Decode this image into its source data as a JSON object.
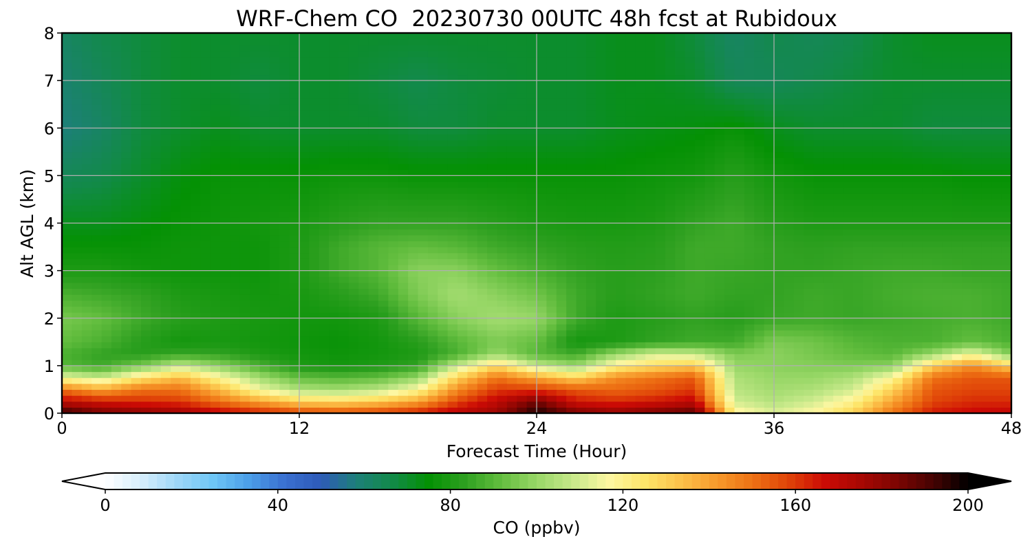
{
  "chart_data": {
    "type": "heatmap",
    "title": "WRF-Chem CO  20230730 00UTC 48h fcst at Rubidoux",
    "xlabel": "Forecast Time (Hour)",
    "ylabel": "Alt AGL (km)",
    "xlim": [
      0,
      48
    ],
    "ylim": [
      0,
      8
    ],
    "x_ticks": [
      "0",
      "12",
      "24",
      "36",
      "48"
    ],
    "y_ticks": [
      "0",
      "1",
      "2",
      "3",
      "4",
      "5",
      "6",
      "7",
      "8"
    ],
    "grid": true,
    "colorbar": {
      "label": "CO  (ppbv)",
      "range": [
        0,
        200
      ],
      "ticks": [
        "0",
        "40",
        "80",
        "120",
        "160",
        "200"
      ],
      "extend": "both",
      "colors": [
        "#ffffff",
        "#d6eefc",
        "#9ed7f8",
        "#6ec6f6",
        "#4b9ee8",
        "#3a6fd0",
        "#2e5bb8",
        "#1d8078",
        "#128a48",
        "#049104",
        "#2ea020",
        "#62bd3e",
        "#98d767",
        "#c7e98a",
        "#fdf7a2",
        "#fde56a",
        "#fcc24a",
        "#f79a2c",
        "#ee7214",
        "#e04408",
        "#cc0b05",
        "#a80803",
        "#7e0502",
        "#470302",
        "#000000"
      ]
    },
    "forecast_hours": [
      0,
      2,
      4,
      6,
      8,
      10,
      12,
      14,
      16,
      18,
      20,
      22,
      24,
      26,
      28,
      30,
      32,
      34,
      36,
      38,
      40,
      42,
      44,
      46,
      48
    ],
    "altitudes_km": [
      0,
      0.25,
      0.5,
      0.75,
      1,
      1.25,
      1.5,
      2,
      2.5,
      3,
      3.5,
      4,
      5,
      6,
      7,
      8
    ],
    "co_ppbv": [
      [
        196,
        185,
        182,
        178,
        170,
        165,
        160,
        158,
        160,
        165,
        172,
        178,
        198,
        185,
        180,
        185,
        190,
        120,
        112,
        118,
        130,
        150,
        165,
        168,
        170
      ],
      [
        170,
        165,
        162,
        160,
        150,
        140,
        130,
        128,
        132,
        140,
        158,
        170,
        185,
        165,
        162,
        165,
        170,
        110,
        105,
        110,
        120,
        140,
        158,
        162,
        162
      ],
      [
        150,
        140,
        150,
        150,
        135,
        115,
        104,
        102,
        106,
        118,
        145,
        160,
        160,
        155,
        152,
        155,
        160,
        106,
        102,
        104,
        110,
        130,
        155,
        158,
        158
      ],
      [
        115,
        108,
        125,
        135,
        118,
        102,
        92,
        90,
        92,
        100,
        130,
        150,
        140,
        130,
        145,
        150,
        155,
        104,
        100,
        100,
        104,
        118,
        150,
        155,
        155
      ],
      [
        90,
        86,
        95,
        108,
        98,
        88,
        80,
        78,
        80,
        84,
        108,
        128,
        108,
        100,
        120,
        128,
        132,
        100,
        98,
        97,
        96,
        98,
        130,
        145,
        130
      ],
      [
        88,
        84,
        82,
        85,
        84,
        80,
        78,
        77,
        78,
        80,
        88,
        100,
        90,
        86,
        100,
        110,
        108,
        96,
        98,
        95,
        92,
        90,
        100,
        115,
        96
      ],
      [
        92,
        88,
        82,
        78,
        79,
        78,
        77,
        76,
        78,
        82,
        90,
        96,
        92,
        78,
        80,
        84,
        86,
        86,
        96,
        94,
        90,
        88,
        88,
        92,
        88
      ],
      [
        95,
        92,
        86,
        82,
        80,
        79,
        78,
        78,
        80,
        90,
        98,
        102,
        100,
        86,
        80,
        82,
        84,
        82,
        85,
        86,
        85,
        86,
        87,
        88,
        86
      ],
      [
        88,
        86,
        84,
        80,
        79,
        78,
        79,
        82,
        86,
        96,
        102,
        98,
        94,
        86,
        82,
        84,
        86,
        84,
        84,
        86,
        85,
        87,
        88,
        88,
        86
      ],
      [
        80,
        80,
        78,
        77,
        77,
        77,
        80,
        86,
        90,
        98,
        98,
        92,
        88,
        84,
        82,
        83,
        86,
        85,
        84,
        84,
        85,
        86,
        86,
        85,
        85
      ],
      [
        76,
        76,
        76,
        77,
        77,
        77,
        80,
        86,
        90,
        92,
        90,
        86,
        84,
        82,
        81,
        82,
        86,
        86,
        84,
        83,
        84,
        84,
        84,
        84,
        84
      ],
      [
        72,
        72,
        74,
        76,
        77,
        78,
        79,
        82,
        84,
        84,
        84,
        82,
        80,
        79,
        79,
        80,
        84,
        86,
        82,
        80,
        80,
        80,
        80,
        80,
        80
      ],
      [
        64,
        66,
        70,
        74,
        76,
        76,
        76,
        77,
        77,
        76,
        76,
        76,
        76,
        76,
        76,
        77,
        78,
        82,
        78,
        76,
        76,
        76,
        76,
        75,
        75
      ],
      [
        58,
        62,
        68,
        70,
        72,
        70,
        70,
        70,
        70,
        68,
        68,
        70,
        70,
        70,
        72,
        73,
        74,
        76,
        72,
        70,
        70,
        70,
        68,
        68,
        68
      ],
      [
        60,
        64,
        68,
        70,
        70,
        68,
        70,
        70,
        68,
        66,
        68,
        69,
        70,
        70,
        72,
        72,
        70,
        64,
        64,
        66,
        68,
        70,
        70,
        70,
        70
      ],
      [
        62,
        66,
        68,
        70,
        70,
        70,
        70,
        70,
        70,
        70,
        70,
        70,
        70,
        70,
        72,
        72,
        68,
        62,
        66,
        64,
        66,
        70,
        72,
        72,
        72
      ]
    ]
  }
}
